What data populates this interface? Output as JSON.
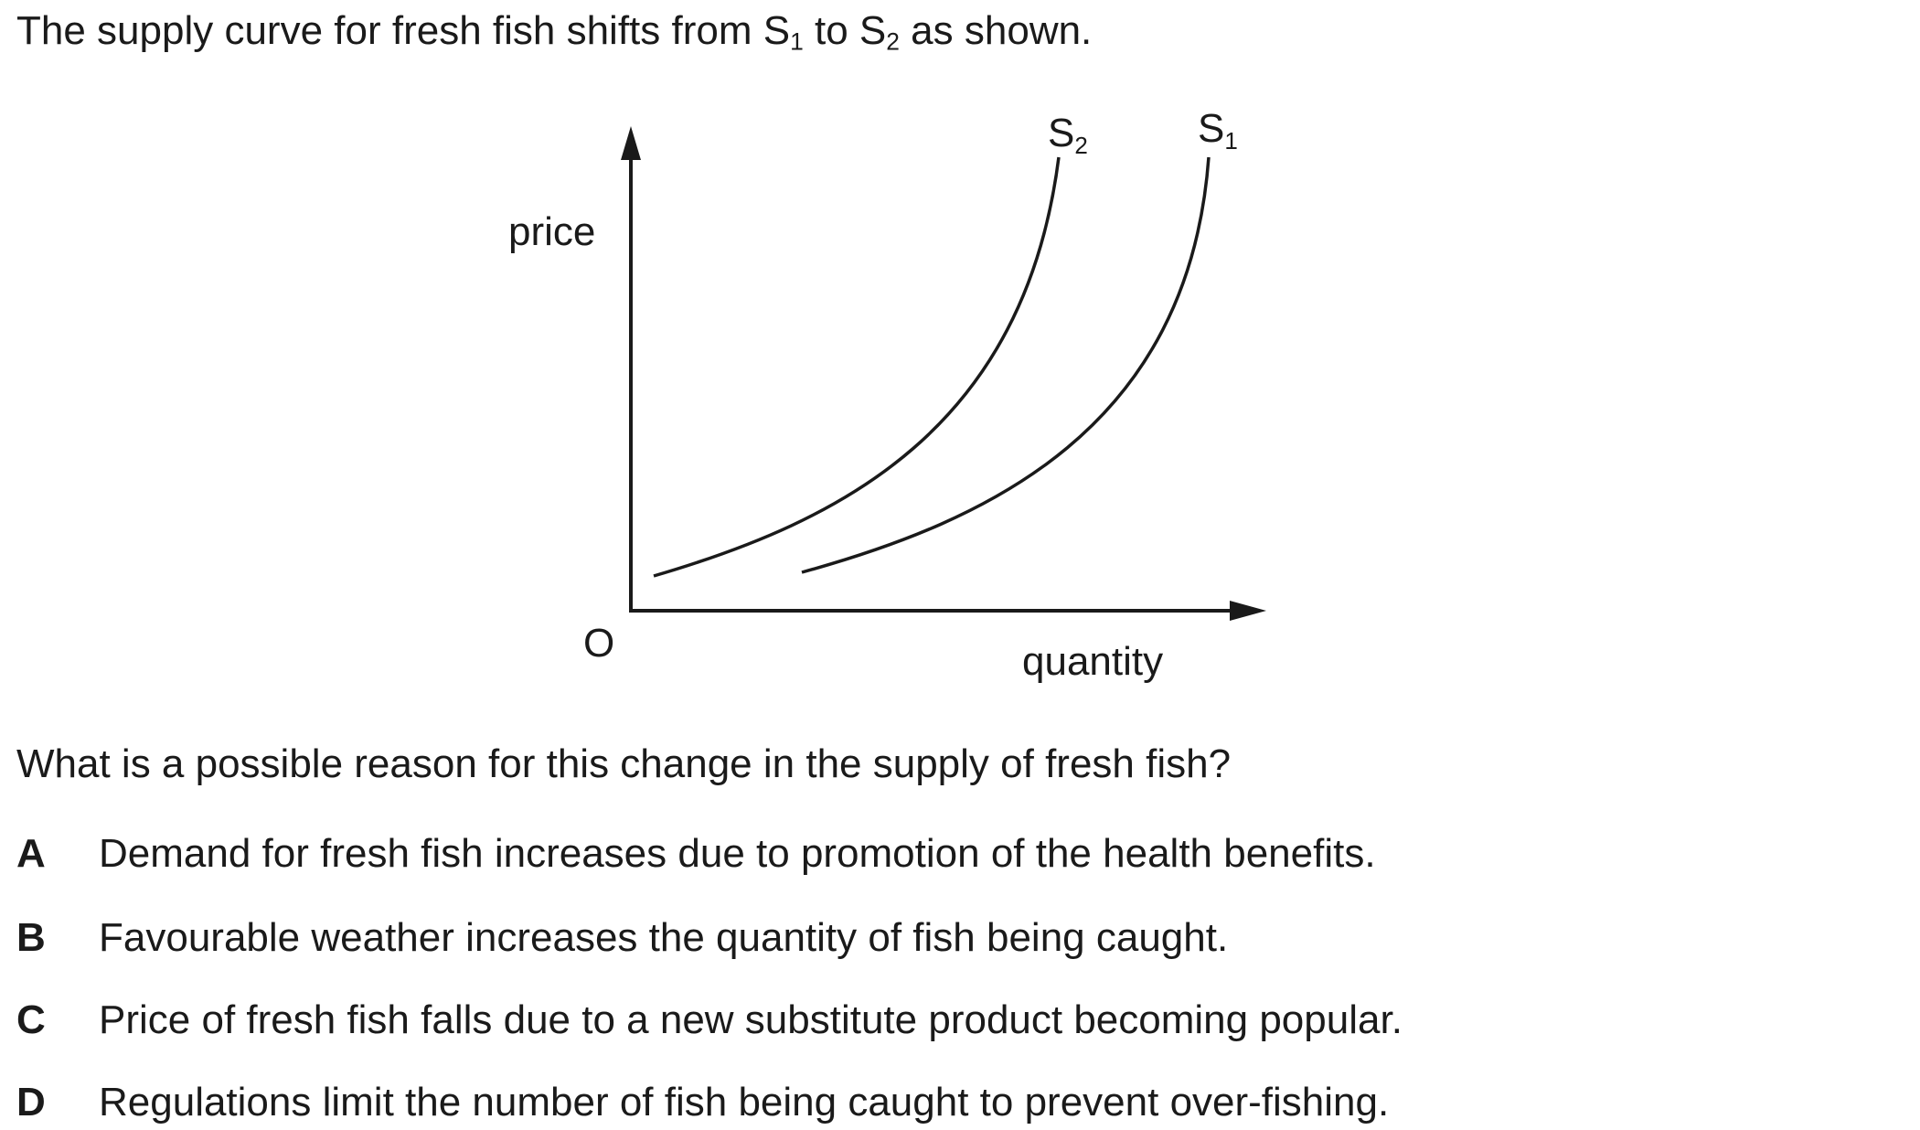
{
  "stem": {
    "prefix": "The supply curve for fresh fish shifts from S",
    "sub1": "1",
    "middle": " to S",
    "sub2": "2",
    "suffix": " as shown."
  },
  "diagram": {
    "y_axis_label": "price",
    "x_axis_label": "quantity",
    "origin_label": "O",
    "curves": [
      {
        "letter": "S",
        "subscript": "2"
      },
      {
        "letter": "S",
        "subscript": "1"
      }
    ]
  },
  "question": "What is a possible reason for this change in the supply of fresh fish?",
  "options": [
    {
      "letter": "A",
      "text": "Demand for fresh fish increases due to promotion of the health benefits."
    },
    {
      "letter": "B",
      "text": "Favourable weather increases the quantity of fish being caught."
    },
    {
      "letter": "C",
      "text": "Price of fresh fish falls due to a new substitute product becoming popular."
    },
    {
      "letter": "D",
      "text": "Regulations limit the number of fish being caught to prevent over-fishing."
    }
  ]
}
